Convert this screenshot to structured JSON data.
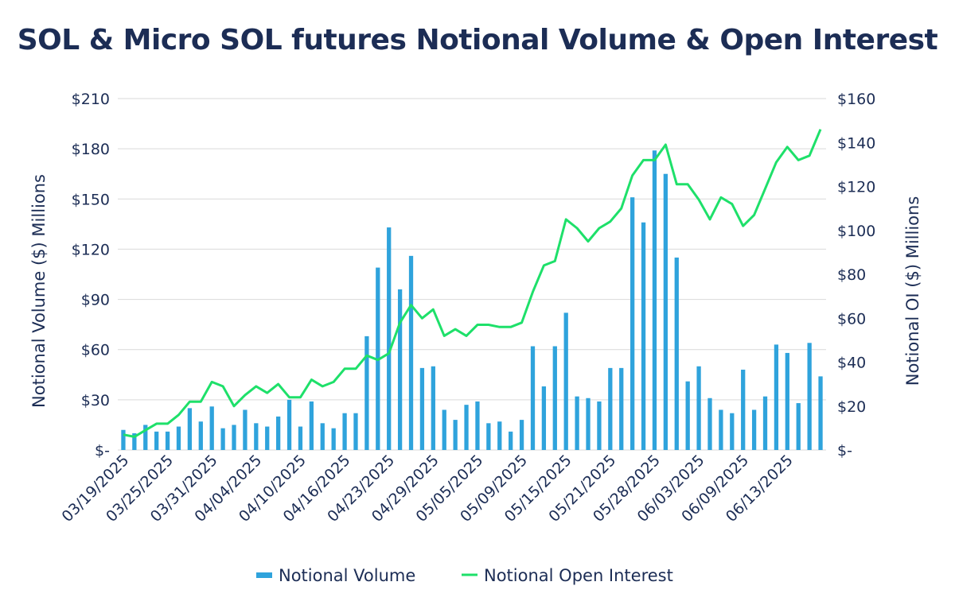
{
  "chart_data": {
    "type": "bar+line",
    "title": "SOL & Micro SOL futures Notional Volume & Open Interest",
    "y_left_label": "Notional Volume ($) Millions",
    "y_right_label": "Notional OI ($) Millions",
    "y_left_ticks": [
      "$-",
      "$30",
      "$60",
      "$90",
      "$120",
      "$150",
      "$180",
      "$210"
    ],
    "y_right_ticks": [
      "$-",
      "$20",
      "$40",
      "$60",
      "$80",
      "$100",
      "$120",
      "$140",
      "$160"
    ],
    "ylim_left": [
      0,
      210
    ],
    "ylim_right": [
      0,
      160
    ],
    "x_tick_labels": [
      "03/19/2025",
      "03/25/2025",
      "03/31/2025",
      "04/04/2025",
      "04/10/2025",
      "04/16/2025",
      "04/23/2025",
      "04/29/2025",
      "05/05/2025",
      "05/09/2025",
      "05/15/2025",
      "05/21/2025",
      "05/28/2025",
      "06/03/2025",
      "06/09/2025",
      "06/13/2025"
    ],
    "x_tick_every": 4,
    "grid": true,
    "legend_position": "bottom",
    "colors": {
      "volume": "#2fa3dc",
      "open_interest": "#1ee06a",
      "text": "#1c2d55",
      "grid": "#d9d9d9"
    },
    "series": [
      {
        "name": "Notional Volume",
        "kind": "bar",
        "axis": "left",
        "values": [
          12,
          10,
          15,
          11,
          11,
          14,
          25,
          17,
          26,
          13,
          15,
          24,
          16,
          14,
          20,
          30,
          14,
          29,
          16,
          13,
          22,
          22,
          68,
          109,
          133,
          96,
          116,
          49,
          50,
          24,
          18,
          27,
          29,
          16,
          17,
          11,
          18,
          62,
          38,
          62,
          82,
          32,
          31,
          29,
          49,
          49,
          151,
          136,
          179,
          165,
          115,
          41,
          50,
          31,
          24,
          22,
          48,
          24,
          32,
          63,
          58,
          28,
          64,
          44
        ]
      },
      {
        "name": "Notional Open Interest",
        "kind": "line",
        "axis": "right",
        "values": [
          7,
          6,
          9,
          12,
          12,
          16,
          22,
          22,
          31,
          29,
          20,
          25,
          29,
          26,
          30,
          24,
          24,
          32,
          29,
          31,
          37,
          37,
          43,
          41,
          44,
          58,
          66,
          60,
          64,
          52,
          55,
          52,
          57,
          57,
          56,
          56,
          58,
          72,
          84,
          86,
          105,
          101,
          95,
          101,
          104,
          110,
          125,
          132,
          132,
          139,
          121,
          121,
          114,
          105,
          115,
          112,
          102,
          107,
          119,
          131,
          138,
          132,
          134,
          146
        ]
      }
    ]
  }
}
